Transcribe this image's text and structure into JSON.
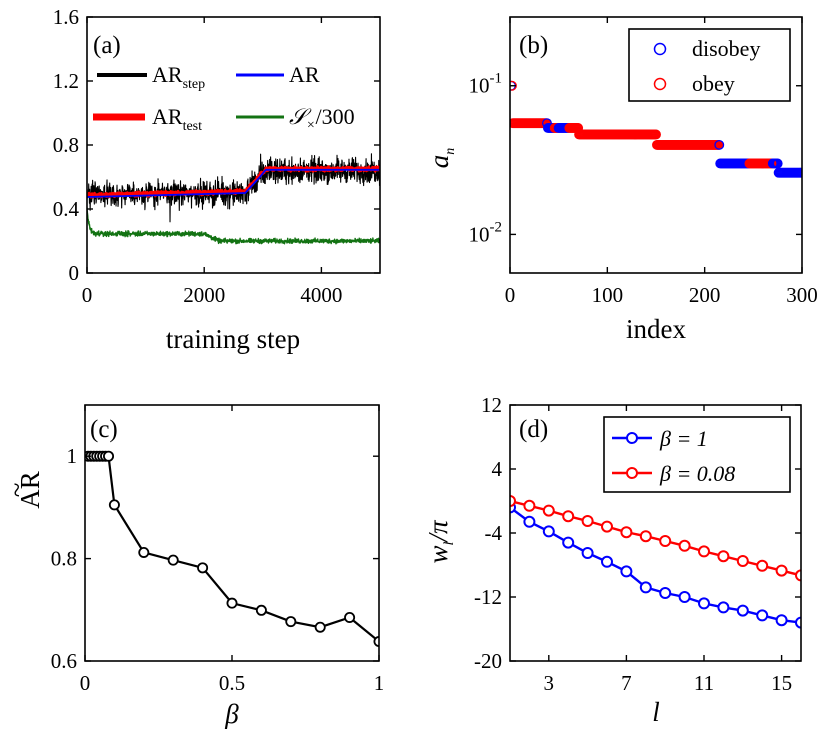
{
  "chart_data": [
    {
      "id": "a",
      "type": "line",
      "panel_label": "(a)",
      "xlabel": "training step",
      "ylabel": "",
      "xlim": [
        0,
        5000
      ],
      "ylim": [
        0,
        1.6
      ],
      "xticks": [
        0,
        2000,
        4000
      ],
      "xtick_labels": [
        "0",
        "2000",
        "4000"
      ],
      "yticks": [
        0,
        0.4,
        0.8,
        1.2,
        1.6
      ],
      "ytick_labels": [
        "0",
        "0.4",
        "0.8",
        "1.2",
        "1.6"
      ],
      "legend": [
        {
          "main": "AR",
          "sub": "step",
          "color": "#000000"
        },
        {
          "main": "AR",
          "sub": "",
          "color": "#0000ff"
        },
        {
          "main": "AR",
          "sub": "test",
          "color": "#ff0000"
        },
        {
          "main": "𝒮",
          "sub": "×",
          "tail": "/300",
          "color": "#137313"
        }
      ],
      "series": [
        {
          "name": "AR_step",
          "color": "#000000",
          "noise": 0.065,
          "x": [
            0,
            2700,
            2950,
            3100,
            5000
          ],
          "y": [
            0.49,
            0.5,
            0.6,
            0.64,
            0.64
          ]
        },
        {
          "name": "AR",
          "color": "#0000ff",
          "noise": 0,
          "x": [
            0,
            2700,
            2950,
            3050,
            5000
          ],
          "y": [
            0.475,
            0.5,
            0.6,
            0.645,
            0.645
          ]
        },
        {
          "name": "AR_test",
          "color": "#ff0000",
          "noise": 0.01,
          "x": [
            0,
            2700,
            2950,
            3050,
            5000
          ],
          "y": [
            0.485,
            0.51,
            0.61,
            0.65,
            0.65
          ]
        },
        {
          "name": "S/300",
          "color": "#137313",
          "noise": 0.012,
          "x": [
            0,
            20,
            60,
            150,
            2000,
            2250,
            5000
          ],
          "y": [
            0.4,
            0.33,
            0.27,
            0.245,
            0.245,
            0.2,
            0.2
          ]
        }
      ]
    },
    {
      "id": "b",
      "type": "scatter",
      "panel_label": "(b)",
      "xlabel": "index",
      "ylabel": "a",
      "ylabel_sub": "n",
      "xlim": [
        0,
        300
      ],
      "ylog": true,
      "ylim": [
        0.0055,
        0.29
      ],
      "xticks": [
        0,
        100,
        200,
        300
      ],
      "xtick_labels": [
        "0",
        "100",
        "200",
        "300"
      ],
      "yticks": [
        0.01,
        0.1
      ],
      "ytick_labels": [
        {
          "base": "10",
          "exp": "-2"
        },
        {
          "base": "10",
          "exp": "-1"
        }
      ],
      "legend": [
        {
          "label": "disobey",
          "color": "#0000ff"
        },
        {
          "label": "obey",
          "color": "#ff0000"
        }
      ],
      "steps": [
        {
          "from": 1,
          "to": 2,
          "value": 0.1
        },
        {
          "from": 3,
          "to": 38,
          "value": 0.056
        },
        {
          "from": 39,
          "to": 70,
          "value": 0.052
        },
        {
          "from": 71,
          "to": 150,
          "value": 0.047
        },
        {
          "from": 151,
          "to": 215,
          "value": 0.04
        },
        {
          "from": 216,
          "to": 275,
          "value": 0.03
        },
        {
          "from": 276,
          "to": 300,
          "value": 0.026
        }
      ],
      "disobey_ranges": [
        [
          1,
          1
        ],
        [
          38,
          45
        ],
        [
          50,
          60
        ],
        [
          215,
          245
        ],
        [
          270,
          300
        ]
      ]
    },
    {
      "id": "c",
      "type": "line",
      "panel_label": "(c)",
      "xlabel": "β",
      "ylabel": "AR",
      "ylabel_accent": "~",
      "xlim": [
        0,
        1
      ],
      "ylim": [
        0.6,
        1.1
      ],
      "xticks": [
        0,
        0.5,
        1
      ],
      "xtick_labels": [
        "0",
        "0.5",
        "1"
      ],
      "yticks": [
        0.6,
        0.8,
        1
      ],
      "ytick_labels": [
        "0.6",
        "0.8",
        "1"
      ],
      "series": [
        {
          "name": "AR~",
          "color": "#000000",
          "x": [
            0.01,
            0.02,
            0.03,
            0.04,
            0.05,
            0.06,
            0.07,
            0.08,
            0.1,
            0.2,
            0.3,
            0.4,
            0.5,
            0.6,
            0.7,
            0.8,
            0.9,
            1.0
          ],
          "y": [
            1,
            1,
            1,
            1,
            1,
            1,
            1,
            1,
            0.905,
            0.812,
            0.797,
            0.782,
            0.713,
            0.699,
            0.677,
            0.666,
            0.685,
            0.638
          ]
        }
      ]
    },
    {
      "id": "d",
      "type": "line",
      "panel_label": "(d)",
      "xlabel": "l",
      "ylabel": "w",
      "ylabel_sub": "l",
      "ylabel_tail": "/π",
      "xlim": [
        1,
        16
      ],
      "ylim": [
        -20,
        12
      ],
      "xticks": [
        3,
        7,
        11,
        15
      ],
      "xtick_labels": [
        "3",
        "7",
        "11",
        "15"
      ],
      "yticks": [
        -20,
        -12,
        -4,
        4,
        12
      ],
      "ytick_labels": [
        "-20",
        "-12",
        "-4",
        "4",
        "12"
      ],
      "legend": [
        {
          "label": "β = 1",
          "color": "#0000ff"
        },
        {
          "label": "β = 0.08",
          "color": "#ff0000"
        }
      ],
      "series": [
        {
          "name": "β = 1",
          "color": "#0000ff",
          "x": [
            1,
            2,
            3,
            4,
            5,
            6,
            7,
            8,
            9,
            10,
            11,
            12,
            13,
            14,
            15,
            16
          ],
          "y": [
            -0.8,
            -2.6,
            -3.8,
            -5.2,
            -6.5,
            -7.6,
            -8.8,
            -10.8,
            -11.5,
            -12.0,
            -12.8,
            -13.3,
            -13.7,
            -14.3,
            -14.9,
            -15.2
          ]
        },
        {
          "name": "β = 0.08",
          "color": "#ff0000",
          "x": [
            1,
            2,
            3,
            4,
            5,
            6,
            7,
            8,
            9,
            10,
            11,
            12,
            13,
            14,
            15,
            16
          ],
          "y": [
            0.0,
            -0.6,
            -1.2,
            -1.9,
            -2.5,
            -3.2,
            -3.9,
            -4.4,
            -5.0,
            -5.6,
            -6.3,
            -6.9,
            -7.5,
            -8.1,
            -8.7,
            -9.3
          ]
        }
      ]
    }
  ]
}
